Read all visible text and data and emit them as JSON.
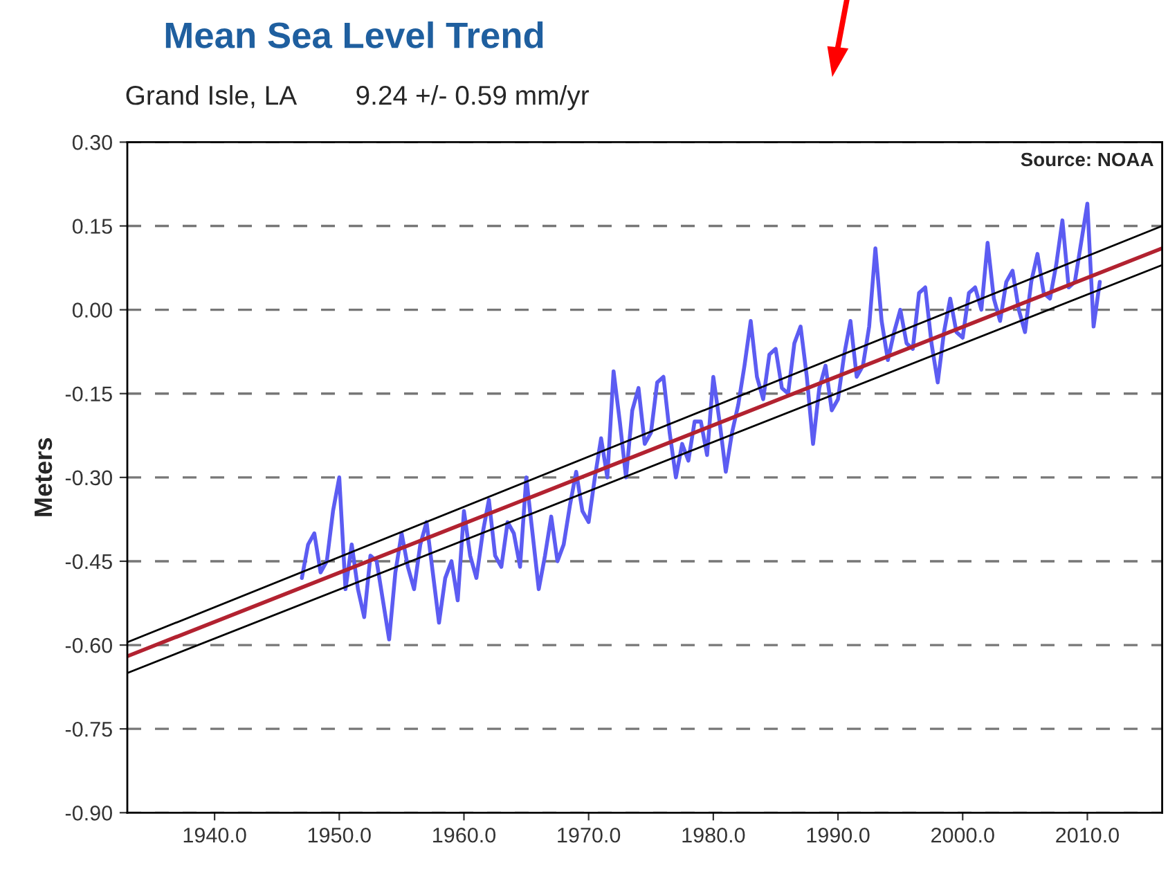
{
  "chart_data": {
    "type": "line",
    "title": "Mean Sea Level Trend",
    "subtitle": "Grand Isle, LA        9.24 +/- 0.59 mm/yr",
    "ylabel": "Meters",
    "annotations": [
      "Source: NOAA"
    ],
    "xlim": [
      1933,
      2016
    ],
    "ylim": [
      -0.9,
      0.3
    ],
    "xticks": [
      {
        "value": 1940,
        "label": "1940.0"
      },
      {
        "value": 1950,
        "label": "1950.0"
      },
      {
        "value": 1960,
        "label": "1960.0"
      },
      {
        "value": 1970,
        "label": "1970.0"
      },
      {
        "value": 1980,
        "label": "1980.0"
      },
      {
        "value": 1990,
        "label": "1990.0"
      },
      {
        "value": 2000,
        "label": "2000.0"
      },
      {
        "value": 2010,
        "label": "2010.0"
      }
    ],
    "yticks": [
      {
        "value": 0.3,
        "label": "0.30"
      },
      {
        "value": 0.15,
        "label": "0.15"
      },
      {
        "value": 0.0,
        "label": "0.00"
      },
      {
        "value": -0.15,
        "label": "-0.15"
      },
      {
        "value": -0.3,
        "label": "-0.30"
      },
      {
        "value": -0.45,
        "label": "-0.45"
      },
      {
        "value": -0.6,
        "label": "-0.60"
      },
      {
        "value": -0.75,
        "label": "-0.75"
      },
      {
        "value": -0.9,
        "label": "-0.90"
      }
    ],
    "grid": "y",
    "line_style": "solid",
    "marker": "none",
    "series": [
      {
        "color": "#5c5cf2",
        "x": [
          1947.0,
          1947.5,
          1948.0,
          1948.5,
          1949.0,
          1949.5,
          1950.0,
          1950.5,
          1951.0,
          1951.5,
          1952.0,
          1952.5,
          1953.0,
          1953.5,
          1954.0,
          1954.5,
          1955.0,
          1955.5,
          1956.0,
          1956.5,
          1957.0,
          1957.5,
          1958.0,
          1958.5,
          1959.0,
          1959.5,
          1960.0,
          1960.5,
          1961.0,
          1961.5,
          1962.0,
          1962.5,
          1963.0,
          1963.5,
          1964.0,
          1964.5,
          1965.0,
          1965.5,
          1966.0,
          1966.5,
          1967.0,
          1967.5,
          1968.0,
          1968.5,
          1969.0,
          1969.5,
          1970.0,
          1970.5,
          1971.0,
          1971.5,
          1972.0,
          1972.5,
          1973.0,
          1973.5,
          1974.0,
          1974.5,
          1975.0,
          1975.5,
          1976.0,
          1976.5,
          1977.0,
          1977.5,
          1978.0,
          1978.5,
          1979.0,
          1979.5,
          1980.0,
          1980.5,
          1981.0,
          1981.5,
          1982.0,
          1982.5,
          1983.0,
          1983.5,
          1984.0,
          1984.5,
          1985.0,
          1985.5,
          1986.0,
          1986.5,
          1987.0,
          1987.5,
          1988.0,
          1988.5,
          1989.0,
          1989.5,
          1990.0,
          1990.5,
          1991.0,
          1991.5,
          1992.0,
          1992.5,
          1993.0,
          1993.5,
          1994.0,
          1994.5,
          1995.0,
          1995.5,
          1996.0,
          1996.5,
          1997.0,
          1997.5,
          1998.0,
          1998.5,
          1999.0,
          1999.5,
          2000.0,
          2000.5,
          2001.0,
          2001.5,
          2002.0,
          2002.5,
          2003.0,
          2003.5,
          2004.0,
          2004.5,
          2005.0,
          2005.5,
          2006.0,
          2006.5,
          2007.0,
          2007.5,
          2008.0,
          2008.5,
          2009.0,
          2009.5,
          2010.0,
          2010.5,
          2011.0
        ],
        "values": [
          -0.48,
          -0.42,
          -0.4,
          -0.47,
          -0.45,
          -0.36,
          -0.3,
          -0.5,
          -0.42,
          -0.5,
          -0.55,
          -0.44,
          -0.45,
          -0.52,
          -0.59,
          -0.47,
          -0.4,
          -0.46,
          -0.5,
          -0.42,
          -0.38,
          -0.47,
          -0.56,
          -0.48,
          -0.45,
          -0.52,
          -0.36,
          -0.44,
          -0.48,
          -0.4,
          -0.34,
          -0.44,
          -0.46,
          -0.38,
          -0.4,
          -0.46,
          -0.3,
          -0.4,
          -0.5,
          -0.44,
          -0.37,
          -0.45,
          -0.42,
          -0.35,
          -0.29,
          -0.36,
          -0.38,
          -0.3,
          -0.23,
          -0.3,
          -0.11,
          -0.2,
          -0.3,
          -0.18,
          -0.14,
          -0.24,
          -0.22,
          -0.13,
          -0.12,
          -0.22,
          -0.3,
          -0.24,
          -0.27,
          -0.2,
          -0.2,
          -0.26,
          -0.12,
          -0.2,
          -0.29,
          -0.22,
          -0.17,
          -0.1,
          -0.02,
          -0.12,
          -0.16,
          -0.08,
          -0.07,
          -0.14,
          -0.15,
          -0.06,
          -0.03,
          -0.12,
          -0.24,
          -0.14,
          -0.1,
          -0.18,
          -0.16,
          -0.08,
          -0.02,
          -0.12,
          -0.1,
          -0.03,
          0.11,
          -0.02,
          -0.09,
          -0.04,
          0.0,
          -0.06,
          -0.07,
          0.03,
          0.04,
          -0.06,
          -0.13,
          -0.04,
          0.02,
          -0.04,
          -0.05,
          0.03,
          0.04,
          0.0,
          0.12,
          0.02,
          -0.02,
          0.05,
          0.07,
          0.0,
          -0.04,
          0.05,
          0.1,
          0.03,
          0.02,
          0.08,
          0.16,
          0.04,
          0.05,
          0.12,
          0.19,
          -0.03,
          0.05
        ]
      },
      {
        "color": "#b22230",
        "x": [
          1933,
          2016
        ],
        "values": [
          -0.62,
          0.11
        ]
      },
      {
        "color": "#000000",
        "x": [
          1933,
          2016
        ],
        "values": [
          -0.595,
          0.15
        ]
      },
      {
        "color": "#000000",
        "x": [
          1933,
          2016
        ],
        "values": [
          -0.65,
          0.08
        ]
      }
    ]
  }
}
